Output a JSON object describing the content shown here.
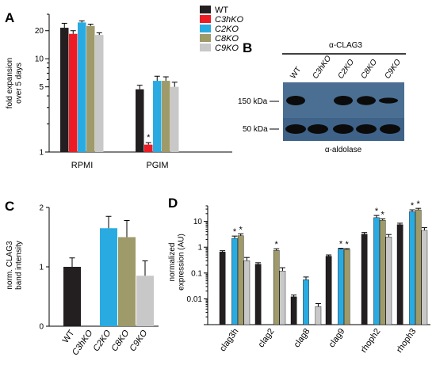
{
  "colors": {
    "WT": "#231f20",
    "C3hKO": "#ed1c24",
    "C2KO": "#29abe2",
    "C8KO": "#9e9a6a",
    "C9KO": "#c8c8c8"
  },
  "panels": {
    "a": "A",
    "b": "B",
    "c": "C",
    "d": "D"
  },
  "legend": [
    "WT",
    "C3hKO",
    "C2KO",
    "C8KO",
    "C9KO"
  ],
  "chart_data": [
    {
      "type": "bar",
      "panel": "A",
      "yscale": "log",
      "ylabel_lines": [
        "fold expansion",
        "over 5 days"
      ],
      "ylim": [
        1,
        30
      ],
      "yticks": [
        1,
        5,
        10,
        20
      ],
      "categories": [
        "RPMI",
        "PGIM"
      ],
      "series": [
        {
          "name": "WT",
          "values": [
            21.5,
            4.7
          ],
          "err": [
            2.5,
            0.5
          ]
        },
        {
          "name": "C3hKO",
          "values": [
            18.5,
            1.2
          ],
          "err": [
            1.5,
            0.06
          ]
        },
        {
          "name": "C2KO",
          "values": [
            24.5,
            5.8
          ],
          "err": [
            1.0,
            0.7
          ]
        },
        {
          "name": "C8KO",
          "values": [
            22.5,
            5.8
          ],
          "err": [
            1.0,
            0.6
          ]
        },
        {
          "name": "C9KO",
          "values": [
            18.0,
            5.0
          ],
          "err": [
            1.0,
            0.6
          ]
        }
      ],
      "annotations": [
        {
          "category": "PGIM",
          "series": "C3hKO",
          "text": "*"
        }
      ]
    },
    {
      "type": "bar",
      "panel": "C",
      "ylabel_lines": [
        "norm. CLAG3",
        "band intensity"
      ],
      "ylim": [
        0,
        2
      ],
      "yticks": [
        0,
        1,
        2
      ],
      "categories": [
        "WT",
        "C3hKO",
        "C2KO",
        "C8KO",
        "C9KO"
      ],
      "values": [
        1.0,
        0,
        1.65,
        1.5,
        0.85
      ],
      "err": [
        0.15,
        0,
        0.2,
        0.28,
        0.25
      ]
    },
    {
      "type": "bar",
      "panel": "D",
      "yscale": "log",
      "ylabel_lines": [
        "normalized",
        "expression (AU)"
      ],
      "ylim": [
        0.001,
        40
      ],
      "yticks": [
        0.01,
        0.1,
        1,
        10
      ],
      "ytick_labels": [
        "0.01",
        "0.1",
        "1",
        "10"
      ],
      "categories": [
        "clag3h",
        "clag2",
        "clag8",
        "clag9",
        "rhoph2",
        "rhoph3"
      ],
      "series": [
        {
          "name": "WT",
          "values": [
            0.65,
            0.22,
            0.012,
            0.45,
            3.2,
            7.5
          ],
          "err": [
            0.08,
            0.03,
            0.002,
            0.05,
            0.5,
            1.0
          ]
        },
        {
          "name": "C3hKO",
          "values": [
            null,
            null,
            null,
            null,
            null,
            null
          ]
        },
        {
          "name": "C2KO",
          "values": [
            2.2,
            null,
            0.055,
            0.85,
            14.0,
            24.0
          ],
          "err": [
            0.5,
            0,
            0.015,
            0.06,
            3.0,
            4.0
          ]
        },
        {
          "name": "C8KO",
          "values": [
            2.8,
            0.75,
            null,
            0.82,
            11.0,
            28.0
          ],
          "err": [
            0.5,
            0.12,
            0,
            0.06,
            1.5,
            4.0
          ]
        },
        {
          "name": "C9KO",
          "values": [
            0.3,
            0.12,
            0.005,
            null,
            2.5,
            4.5
          ],
          "err": [
            0.1,
            0.04,
            0.0015,
            0,
            0.6,
            1.2
          ]
        }
      ],
      "annotations": [
        {
          "category": "clag3h",
          "series": "C2KO",
          "text": "*"
        },
        {
          "category": "clag3h",
          "series": "C8KO",
          "text": "*"
        },
        {
          "category": "clag2",
          "series": "C8KO",
          "text": "*"
        },
        {
          "category": "clag9",
          "series": "C2KO",
          "text": "*"
        },
        {
          "category": "clag9",
          "series": "C8KO",
          "text": "*"
        },
        {
          "category": "rhoph2",
          "series": "C2KO",
          "text": "*"
        },
        {
          "category": "rhoph2",
          "series": "C8KO",
          "text": "*"
        },
        {
          "category": "rhoph3",
          "series": "C2KO",
          "text": "*"
        },
        {
          "category": "rhoph3",
          "series": "C8KO",
          "text": "*"
        }
      ]
    }
  ],
  "blot": {
    "title": "α-CLAG3",
    "lanes": [
      "WT",
      "C3hKO",
      "C2KO",
      "C8KO",
      "C9KO"
    ],
    "markers": [
      "150 kDa",
      "50 kDa"
    ],
    "bottom_label": "α-aldolase"
  }
}
